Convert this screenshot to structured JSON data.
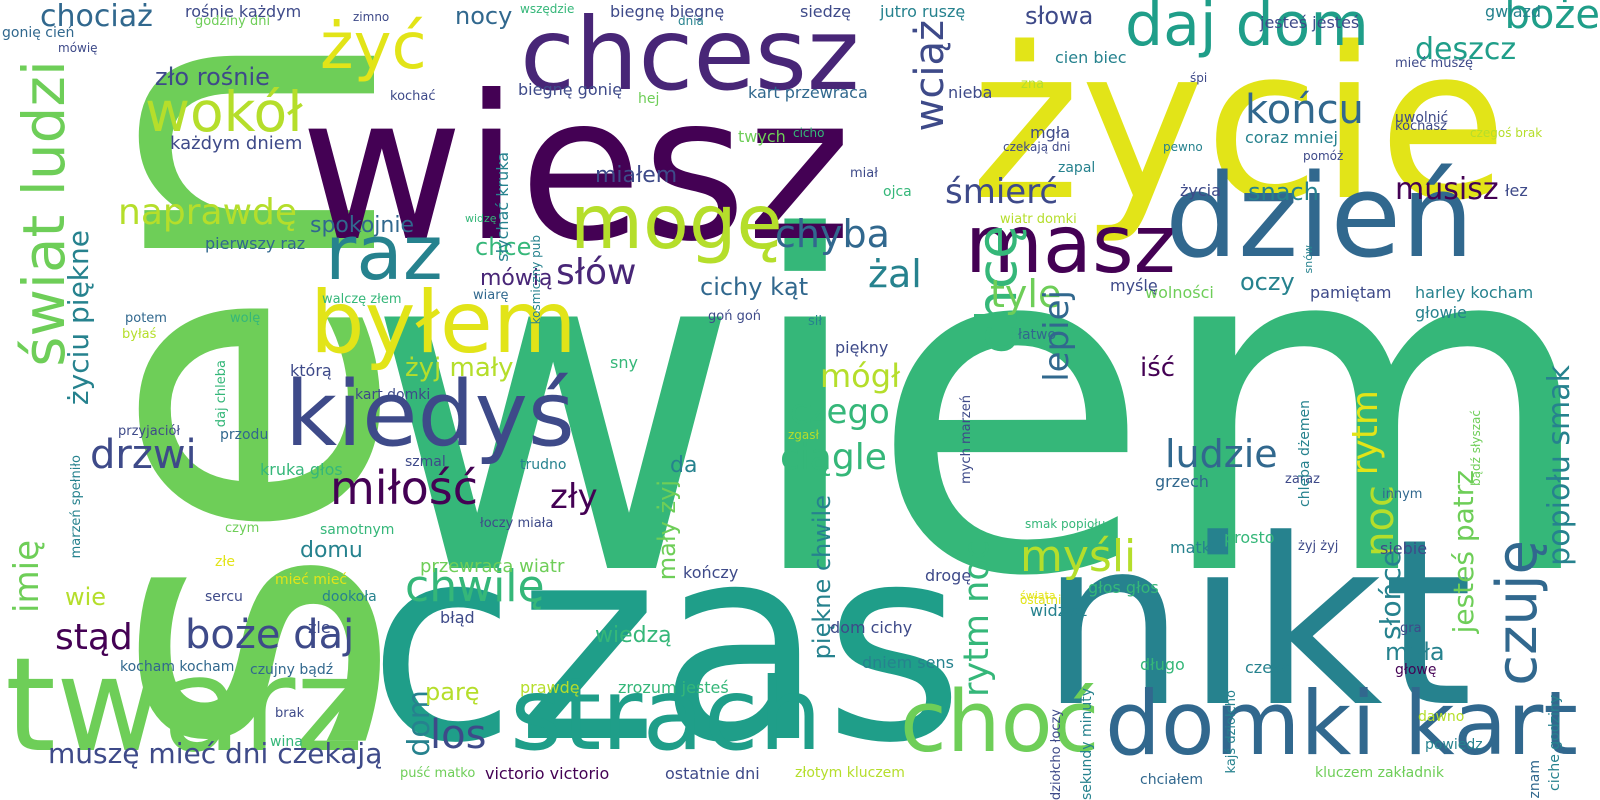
{
  "words": [
    {
      "text": "wiem",
      "color": "#35b779"
    },
    {
      "text": "sen",
      "color": "#6ece58"
    },
    {
      "text": "czas",
      "color": "#1f9e89"
    },
    {
      "text": "wiesz",
      "color": "#440154"
    },
    {
      "text": "życie",
      "color": "#e2e418"
    },
    {
      "text": "nikt",
      "color": "#26828e"
    },
    {
      "text": "twarz",
      "color": "#6ece58"
    },
    {
      "text": "chcesz",
      "color": "#482677"
    },
    {
      "text": "strach",
      "color": "#1f9e89"
    },
    {
      "text": "dzień",
      "color": "#31688e"
    },
    {
      "text": "świat ludzi",
      "color": "#6ece58"
    },
    {
      "text": "domki kart",
      "color": "#31688e"
    },
    {
      "text": "kiedyś",
      "color": "#3e4a89"
    },
    {
      "text": "mogę",
      "color": "#b5de2b"
    },
    {
      "text": "masz",
      "color": "#440154"
    },
    {
      "text": "byłem",
      "color": "#e2e418"
    },
    {
      "text": "daj dom",
      "color": "#1f9e89"
    },
    {
      "text": "raz",
      "color": "#26828e"
    },
    {
      "text": "choć",
      "color": "#6ece58"
    },
    {
      "text": "żyć",
      "color": "#e2e418"
    },
    {
      "text": "chcę",
      "color": "#35b779"
    },
    {
      "text": "wokół",
      "color": "#b5de2b"
    },
    {
      "text": "czuję",
      "color": "#31688e"
    },
    {
      "text": "miłość",
      "color": "#440154"
    },
    {
      "text": "końcu",
      "color": "#31688e"
    },
    {
      "text": "boże daj",
      "color": "#3e4a89"
    },
    {
      "text": "chwilę",
      "color": "#35b779"
    },
    {
      "text": "myśli",
      "color": "#b5de2b"
    },
    {
      "text": "boże",
      "color": "#1f9e89"
    },
    {
      "text": "naprawdę",
      "color": "#b5de2b"
    },
    {
      "text": "drzwi",
      "color": "#3e4a89"
    },
    {
      "text": "chyba",
      "color": "#31688e"
    },
    {
      "text": "ludzie",
      "color": "#31688e"
    },
    {
      "text": "słów",
      "color": "#482677"
    },
    {
      "text": "ciągle",
      "color": "#35b779"
    },
    {
      "text": "żal",
      "color": "#26828e"
    },
    {
      "text": "śmierć",
      "color": "#3e4a89"
    },
    {
      "text": "muszę mieć dni czekają",
      "color": "#3e4a89"
    },
    {
      "text": "stąd",
      "color": "#440154"
    },
    {
      "text": "los",
      "color": "#3e4a89"
    },
    {
      "text": "wciąż",
      "color": "#3e4a89"
    },
    {
      "text": "rytm noc",
      "color": "#35b779"
    },
    {
      "text": "rytm",
      "color": "#e2e418"
    },
    {
      "text": "czego",
      "color": "#35b779"
    },
    {
      "text": "zły",
      "color": "#440154"
    },
    {
      "text": "tyle",
      "color": "#6ece58"
    },
    {
      "text": "lepiej",
      "color": "#31688e"
    },
    {
      "text": "chociaż",
      "color": "#31688e"
    },
    {
      "text": "dom",
      "color": "#26828e"
    },
    {
      "text": "mógł",
      "color": "#b5de2b"
    },
    {
      "text": "noc",
      "color": "#b5de2b"
    },
    {
      "text": "deszcz",
      "color": "#1f9e89"
    },
    {
      "text": "imię",
      "color": "#6ece58"
    },
    {
      "text": "popiołu smak",
      "color": "#26828e"
    },
    {
      "text": "życiu piękne",
      "color": "#26828e"
    },
    {
      "text": "musisz",
      "color": "#440154"
    },
    {
      "text": "jesteś patrz",
      "color": "#6ece58"
    },
    {
      "text": "mały żyj",
      "color": "#6ece58"
    },
    {
      "text": "piękne chwile",
      "color": "#26828e"
    },
    {
      "text": "oczy",
      "color": "#26828e"
    },
    {
      "text": "snach",
      "color": "#26828e"
    },
    {
      "text": "nocy",
      "color": "#31688e"
    },
    {
      "text": "słowa",
      "color": "#3e4a89"
    },
    {
      "text": "zło rośnie",
      "color": "#3e4a89"
    },
    {
      "text": "słońce",
      "color": "#26828e"
    },
    {
      "text": "mała",
      "color": "#26828e"
    },
    {
      "text": "żyj mały",
      "color": "#b5de2b"
    },
    {
      "text": "spokojnie",
      "color": "#31688e"
    },
    {
      "text": "cichy kąt",
      "color": "#31688e"
    },
    {
      "text": "miałem",
      "color": "#3e4a89"
    },
    {
      "text": "mówią",
      "color": "#482677"
    },
    {
      "text": "chce",
      "color": "#35b779"
    },
    {
      "text": "domu",
      "color": "#26828e"
    },
    {
      "text": "wie",
      "color": "#b5de2b"
    },
    {
      "text": "parę",
      "color": "#b5de2b"
    },
    {
      "text": "wiedzą",
      "color": "#35b779"
    },
    {
      "text": "iść",
      "color": "#440154"
    },
    {
      "text": "da",
      "color": "#26828e"
    },
    {
      "text": "każdym dniem",
      "color": "#3e4a89"
    },
    {
      "text": "przewraca wiatr",
      "color": "#6ece58"
    },
    {
      "text": "kart przewraca",
      "color": "#31688e"
    },
    {
      "text": "biegnę biegnę",
      "color": "#3e4a89"
    },
    {
      "text": "jutro ruszę",
      "color": "#26828e"
    },
    {
      "text": "siedzę",
      "color": "#3e4a89"
    },
    {
      "text": "rośnie każdym",
      "color": "#3e4a89"
    },
    {
      "text": "jesteś jesteś",
      "color": "#3e4a89"
    },
    {
      "text": "cien biec",
      "color": "#26828e"
    },
    {
      "text": "coraz mniej",
      "color": "#26828e"
    },
    {
      "text": "harley kocham",
      "color": "#26828e"
    },
    {
      "text": "pamiętam",
      "color": "#3e4a89"
    },
    {
      "text": "wolności",
      "color": "#6ece58"
    },
    {
      "text": "głowie",
      "color": "#26828e"
    },
    {
      "text": "myślę",
      "color": "#3e4a89"
    },
    {
      "text": "grzech",
      "color": "#31688e"
    },
    {
      "text": "siebie",
      "color": "#3e4a89"
    },
    {
      "text": "prosto",
      "color": "#35b779"
    },
    {
      "text": "matki",
      "color": "#26828e"
    },
    {
      "text": "głos głos",
      "color": "#35b779"
    },
    {
      "text": "widzisz",
      "color": "#26828e"
    },
    {
      "text": "długo",
      "color": "#35b779"
    },
    {
      "text": "czeka",
      "color": "#26828e"
    },
    {
      "text": "dom cichy",
      "color": "#3e4a89"
    },
    {
      "text": "dniem sens",
      "color": "#26828e"
    },
    {
      "text": "drogę",
      "color": "#3e4a89"
    },
    {
      "text": "kończy",
      "color": "#3e4a89"
    },
    {
      "text": "błąd",
      "color": "#3e4a89"
    },
    {
      "text": "zrozum jesteś",
      "color": "#35b779"
    },
    {
      "text": "prawdę",
      "color": "#b5de2b"
    },
    {
      "text": "victorio victorio",
      "color": "#440154"
    },
    {
      "text": "ostatnie dni",
      "color": "#3e4a89"
    },
    {
      "text": "złotym kluczem",
      "color": "#b5de2b"
    },
    {
      "text": "kluczem zakładnik",
      "color": "#6ece58"
    },
    {
      "text": "chciałem",
      "color": "#31688e"
    },
    {
      "text": "powiedz",
      "color": "#26828e"
    },
    {
      "text": "dawno",
      "color": "#b5de2b"
    },
    {
      "text": "znam",
      "color": "#31688e"
    },
    {
      "text": "ciche godziny",
      "color": "#26828e"
    },
    {
      "text": "gra",
      "color": "#3e4a89"
    },
    {
      "text": "głowę",
      "color": "#440154"
    },
    {
      "text": "innym",
      "color": "#31688e"
    },
    {
      "text": "zaraz",
      "color": "#3e4a89"
    },
    {
      "text": "bądź słyszać",
      "color": "#6ece58"
    },
    {
      "text": "chleba dżemen",
      "color": "#26828e"
    },
    {
      "text": "kajś dziołcho",
      "color": "#26828e"
    },
    {
      "text": "sekundy minuty",
      "color": "#26828e"
    },
    {
      "text": "dziołcho łoczy",
      "color": "#3e4a89"
    },
    {
      "text": "mych marzeń",
      "color": "#3e4a89"
    },
    {
      "text": "ostatni",
      "color": "#e2e418"
    },
    {
      "text": "żyj żyj",
      "color": "#3e4a89"
    },
    {
      "text": "sercu",
      "color": "#3e4a89"
    },
    {
      "text": "złe",
      "color": "#e2e418"
    },
    {
      "text": "czym",
      "color": "#6ece58"
    },
    {
      "text": "mieć mieć",
      "color": "#e2e418"
    },
    {
      "text": "samotnym",
      "color": "#35b779"
    },
    {
      "text": "łoczy miała",
      "color": "#3e4a89"
    },
    {
      "text": "dookoła",
      "color": "#26828e"
    },
    {
      "text": "źle",
      "color": "#3e4a89"
    },
    {
      "text": "kocham kocham",
      "color": "#31688e"
    },
    {
      "text": "czujny bądź",
      "color": "#31688e"
    },
    {
      "text": "brak",
      "color": "#3e4a89"
    },
    {
      "text": "wina",
      "color": "#35b779"
    },
    {
      "text": "puść matko",
      "color": "#6ece58"
    },
    {
      "text": "kruka głos",
      "color": "#35b779"
    },
    {
      "text": "szmal",
      "color": "#3e4a89"
    },
    {
      "text": "trudno",
      "color": "#26828e"
    },
    {
      "text": "przodu",
      "color": "#31688e"
    },
    {
      "text": "przyjaciół",
      "color": "#3e4a89"
    },
    {
      "text": "marzeń spełniło",
      "color": "#26828e"
    },
    {
      "text": "daj chleba",
      "color": "#35b779"
    },
    {
      "text": "wolę",
      "color": "#35b779"
    },
    {
      "text": "potem",
      "color": "#31688e"
    },
    {
      "text": "byłaś",
      "color": "#b5de2b"
    },
    {
      "text": "pierwszy raz",
      "color": "#31688e"
    },
    {
      "text": "kart domki",
      "color": "#3e4a89"
    },
    {
      "text": "którą",
      "color": "#3e4a89"
    },
    {
      "text": "walczę złem",
      "color": "#35b779"
    },
    {
      "text": "wiarę",
      "color": "#31688e"
    },
    {
      "text": "goń goń",
      "color": "#3e4a89"
    },
    {
      "text": "sny",
      "color": "#35b779"
    },
    {
      "text": "sił",
      "color": "#26828e"
    },
    {
      "text": "piękny",
      "color": "#3e4a89"
    },
    {
      "text": "widzę",
      "color": "#35b779"
    },
    {
      "text": "kosmiczny pub",
      "color": "#26828e"
    },
    {
      "text": "słychać kruka",
      "color": "#26828e"
    },
    {
      "text": "biegnę gonię",
      "color": "#3e4a89"
    },
    {
      "text": "hej",
      "color": "#6ece58"
    },
    {
      "text": "kochać",
      "color": "#3e4a89"
    },
    {
      "text": "dnia",
      "color": "#26828e"
    },
    {
      "text": "wszędzie",
      "color": "#35b779"
    },
    {
      "text": "godziny dni",
      "color": "#6ece58"
    },
    {
      "text": "mówię",
      "color": "#3e4a89"
    },
    {
      "text": "gonię cień",
      "color": "#31688e"
    },
    {
      "text": "zimno",
      "color": "#3e4a89"
    },
    {
      "text": "twych",
      "color": "#6ece58"
    },
    {
      "text": "cicho",
      "color": "#35b779"
    },
    {
      "text": "nieba",
      "color": "#3e4a89"
    },
    {
      "text": "mgła",
      "color": "#3e4a89"
    },
    {
      "text": "czekają dni",
      "color": "#3e4a89"
    },
    {
      "text": "zapal",
      "color": "#26828e"
    },
    {
      "text": "miał",
      "color": "#3e4a89"
    },
    {
      "text": "ojca",
      "color": "#35b779"
    },
    {
      "text": "wiatr domki",
      "color": "#b5de2b"
    },
    {
      "text": "łatwo",
      "color": "#31688e"
    },
    {
      "text": "zna",
      "color": "#b5de2b"
    },
    {
      "text": "pewno",
      "color": "#26828e"
    },
    {
      "text": "śpi",
      "color": "#3e4a89"
    },
    {
      "text": "mieć muszę",
      "color": "#3e4a89"
    },
    {
      "text": "uwolnić",
      "color": "#3e4a89"
    },
    {
      "text": "kochasz",
      "color": "#3e4a89"
    },
    {
      "text": "pomóż",
      "color": "#3e4a89"
    },
    {
      "text": "czegoś brak",
      "color": "#b5de2b"
    },
    {
      "text": "gwiazd",
      "color": "#26828e"
    },
    {
      "text": "życia",
      "color": "#3e4a89"
    },
    {
      "text": "łez",
      "color": "#3e4a89"
    },
    {
      "text": "snów",
      "color": "#26828e"
    },
    {
      "text": "smak popiołu",
      "color": "#35b779"
    },
    {
      "text": "zgasł",
      "color": "#b5de2b"
    },
    {
      "text": "świata",
      "color": "#e2e418"
    }
  ]
}
